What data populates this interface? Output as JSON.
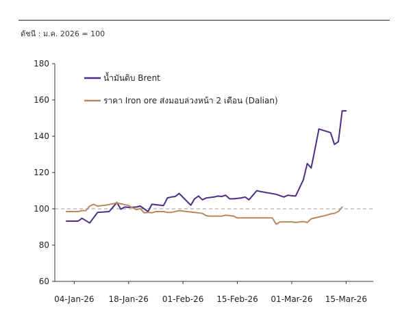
{
  "subtitle": "ดัชนี : ม.ค. 2026 = 100",
  "chart_data": {
    "type": "line",
    "ylim": [
      60,
      180
    ],
    "yticks": [
      60,
      80,
      100,
      120,
      140,
      160,
      180
    ],
    "xlim": [
      "2025-12-30",
      "2026-03-22"
    ],
    "xticks": [
      "2026-01-04",
      "2026-01-18",
      "2026-02-01",
      "2026-02-15",
      "2026-03-01",
      "2026-03-15"
    ],
    "xtick_labels": [
      "04-Jan-26",
      "18-Jan-26",
      "01-Feb-26",
      "15-Feb-26",
      "01-Mar-26",
      "15-Mar-26"
    ],
    "reference_line": {
      "y": 100,
      "style": "dashed",
      "color": "#9a9a9a"
    },
    "legend_position": "top-left",
    "grid": false,
    "series": [
      {
        "name": "น้ำมันดิบ Brent",
        "color": "#4b2e83",
        "points": [
          [
            "2026-01-02",
            93.2
          ],
          [
            "2026-01-05",
            93.2
          ],
          [
            "2026-01-06",
            94.8
          ],
          [
            "2026-01-08",
            92.2
          ],
          [
            "2026-01-10",
            98.0
          ],
          [
            "2026-01-13",
            98.5
          ],
          [
            "2026-01-14",
            101.0
          ],
          [
            "2026-01-15",
            103.5
          ],
          [
            "2026-01-16",
            99.8
          ],
          [
            "2026-01-17",
            101.0
          ],
          [
            "2026-01-18",
            100.8
          ],
          [
            "2026-01-20",
            101.0
          ],
          [
            "2026-01-21",
            101.5
          ],
          [
            "2026-01-23",
            98.5
          ],
          [
            "2026-01-24",
            102.5
          ],
          [
            "2026-01-27",
            101.8
          ],
          [
            "2026-01-28",
            106.0
          ],
          [
            "2026-01-29",
            106.5
          ],
          [
            "2026-01-30",
            106.8
          ],
          [
            "2026-01-31",
            108.5
          ],
          [
            "2026-02-03",
            102.0
          ],
          [
            "2026-02-04",
            105.5
          ],
          [
            "2026-02-05",
            107.0
          ],
          [
            "2026-02-06",
            105.0
          ],
          [
            "2026-02-07",
            106.0
          ],
          [
            "2026-02-09",
            106.5
          ],
          [
            "2026-02-10",
            107.0
          ],
          [
            "2026-02-11",
            106.8
          ],
          [
            "2026-02-12",
            107.5
          ],
          [
            "2026-02-13",
            105.5
          ],
          [
            "2026-02-14",
            105.5
          ],
          [
            "2026-02-16",
            106.0
          ],
          [
            "2026-02-17",
            106.5
          ],
          [
            "2026-02-18",
            105.0
          ],
          [
            "2026-02-20",
            110.0
          ],
          [
            "2026-02-21",
            109.5
          ],
          [
            "2026-02-25",
            108.0
          ],
          [
            "2026-02-27",
            106.5
          ],
          [
            "2026-02-28",
            107.5
          ],
          [
            "2026-03-01",
            107.2
          ],
          [
            "2026-03-02",
            107.0
          ],
          [
            "2026-03-04",
            116.0
          ],
          [
            "2026-03-05",
            125.0
          ],
          [
            "2026-03-06",
            122.5
          ],
          [
            "2026-03-07",
            133.0
          ],
          [
            "2026-03-08",
            144.0
          ],
          [
            "2026-03-11",
            142.0
          ],
          [
            "2026-03-12",
            135.5
          ],
          [
            "2026-03-13",
            137.0
          ],
          [
            "2026-03-14",
            154.0
          ],
          [
            "2026-03-15",
            154.0
          ]
        ]
      },
      {
        "name": "ราคา Iron ore ส่งมอบล่วงหน้า 2 เดือน (Dalian)",
        "color": "#b8875f",
        "points": [
          [
            "2026-01-02",
            98.5
          ],
          [
            "2026-01-05",
            98.5
          ],
          [
            "2026-01-06",
            99.0
          ],
          [
            "2026-01-07",
            99.0
          ],
          [
            "2026-01-08",
            101.5
          ],
          [
            "2026-01-09",
            102.5
          ],
          [
            "2026-01-10",
            101.5
          ],
          [
            "2026-01-12",
            102.0
          ],
          [
            "2026-01-14",
            102.8
          ],
          [
            "2026-01-15",
            103.2
          ],
          [
            "2026-01-16",
            102.8
          ],
          [
            "2026-01-18",
            101.8
          ],
          [
            "2026-01-20",
            99.5
          ],
          [
            "2026-01-21",
            100.2
          ],
          [
            "2026-01-22",
            97.8
          ],
          [
            "2026-01-23",
            98.0
          ],
          [
            "2026-01-24",
            97.8
          ],
          [
            "2026-01-25",
            98.5
          ],
          [
            "2026-01-27",
            98.5
          ],
          [
            "2026-01-28",
            98.0
          ],
          [
            "2026-01-29",
            98.0
          ],
          [
            "2026-01-31",
            99.0
          ],
          [
            "2026-02-02",
            98.5
          ],
          [
            "2026-02-04",
            98.0
          ],
          [
            "2026-02-06",
            97.5
          ],
          [
            "2026-02-07",
            96.2
          ],
          [
            "2026-02-08",
            96.0
          ],
          [
            "2026-02-11",
            96.0
          ],
          [
            "2026-02-12",
            96.5
          ],
          [
            "2026-02-14",
            96.0
          ],
          [
            "2026-02-15",
            95.0
          ],
          [
            "2026-02-17",
            95.0
          ],
          [
            "2026-02-19",
            95.0
          ],
          [
            "2026-02-22",
            95.0
          ],
          [
            "2026-02-24",
            95.0
          ],
          [
            "2026-02-25",
            91.5
          ],
          [
            "2026-02-26",
            92.8
          ],
          [
            "2026-02-28",
            92.8
          ],
          [
            "2026-03-01",
            92.8
          ],
          [
            "2026-03-02",
            92.5
          ],
          [
            "2026-03-04",
            93.0
          ],
          [
            "2026-03-05",
            92.5
          ],
          [
            "2026-03-06",
            94.5
          ],
          [
            "2026-03-08",
            95.5
          ],
          [
            "2026-03-10",
            96.5
          ],
          [
            "2026-03-11",
            97.2
          ],
          [
            "2026-03-12",
            97.5
          ],
          [
            "2026-03-13",
            98.5
          ],
          [
            "2026-03-14",
            101.0
          ]
        ]
      }
    ]
  }
}
